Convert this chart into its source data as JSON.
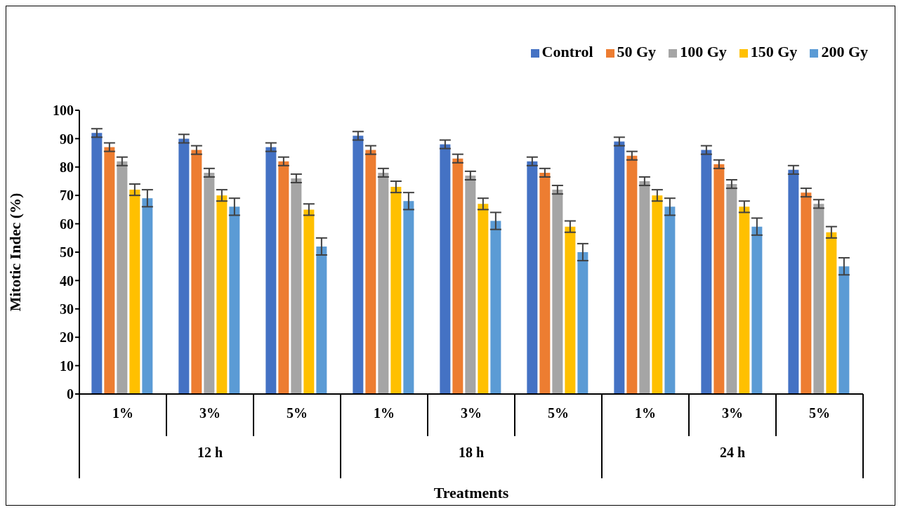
{
  "chart_data": {
    "type": "bar",
    "xlabel": "Treatments",
    "ylabel": "Mitotic Indec (%)",
    "categories": [
      "1%",
      "3%",
      "5%",
      "1%",
      "3%",
      "5%",
      "1%",
      "3%",
      "5%"
    ],
    "annotations": [
      "12 h",
      "18 h",
      "24 h"
    ],
    "series": [
      {
        "name": "Control",
        "color": "#4472c4",
        "values": [
          92,
          90,
          87,
          91,
          88,
          82,
          89,
          86,
          79
        ],
        "errors": [
          1.5,
          1.5,
          1.5,
          1.5,
          1.5,
          1.5,
          1.5,
          1.5,
          1.5
        ]
      },
      {
        "name": "50 Gy",
        "color": "#ed7d31",
        "values": [
          87,
          86,
          82,
          86,
          83,
          78,
          84,
          81,
          71
        ],
        "errors": [
          1.5,
          1.5,
          1.5,
          1.5,
          1.5,
          1.5,
          1.5,
          1.5,
          1.5
        ]
      },
      {
        "name": "100 Gy",
        "color": "#a5a5a5",
        "values": [
          82,
          78,
          76,
          78,
          77,
          72,
          75,
          74,
          67
        ],
        "errors": [
          1.5,
          1.5,
          1.5,
          1.5,
          1.5,
          1.5,
          1.5,
          1.5,
          1.5
        ]
      },
      {
        "name": "150 Gy",
        "color": "#ffc000",
        "values": [
          72,
          70,
          65,
          73,
          67,
          59,
          70,
          66,
          57
        ],
        "errors": [
          2,
          2,
          2,
          2,
          2,
          2,
          2,
          2,
          2
        ]
      },
      {
        "name": "200 Gy",
        "color": "#5b9bd5",
        "values": [
          69,
          66,
          52,
          68,
          61,
          50,
          66,
          59,
          45
        ],
        "errors": [
          3,
          3,
          3,
          3,
          3,
          3,
          3,
          3,
          3
        ]
      }
    ],
    "ylim": [
      0,
      100
    ],
    "yticks": [
      0,
      10,
      20,
      30,
      40,
      50,
      60,
      70,
      80,
      90,
      100
    ],
    "grid": false,
    "legend": "top right"
  }
}
